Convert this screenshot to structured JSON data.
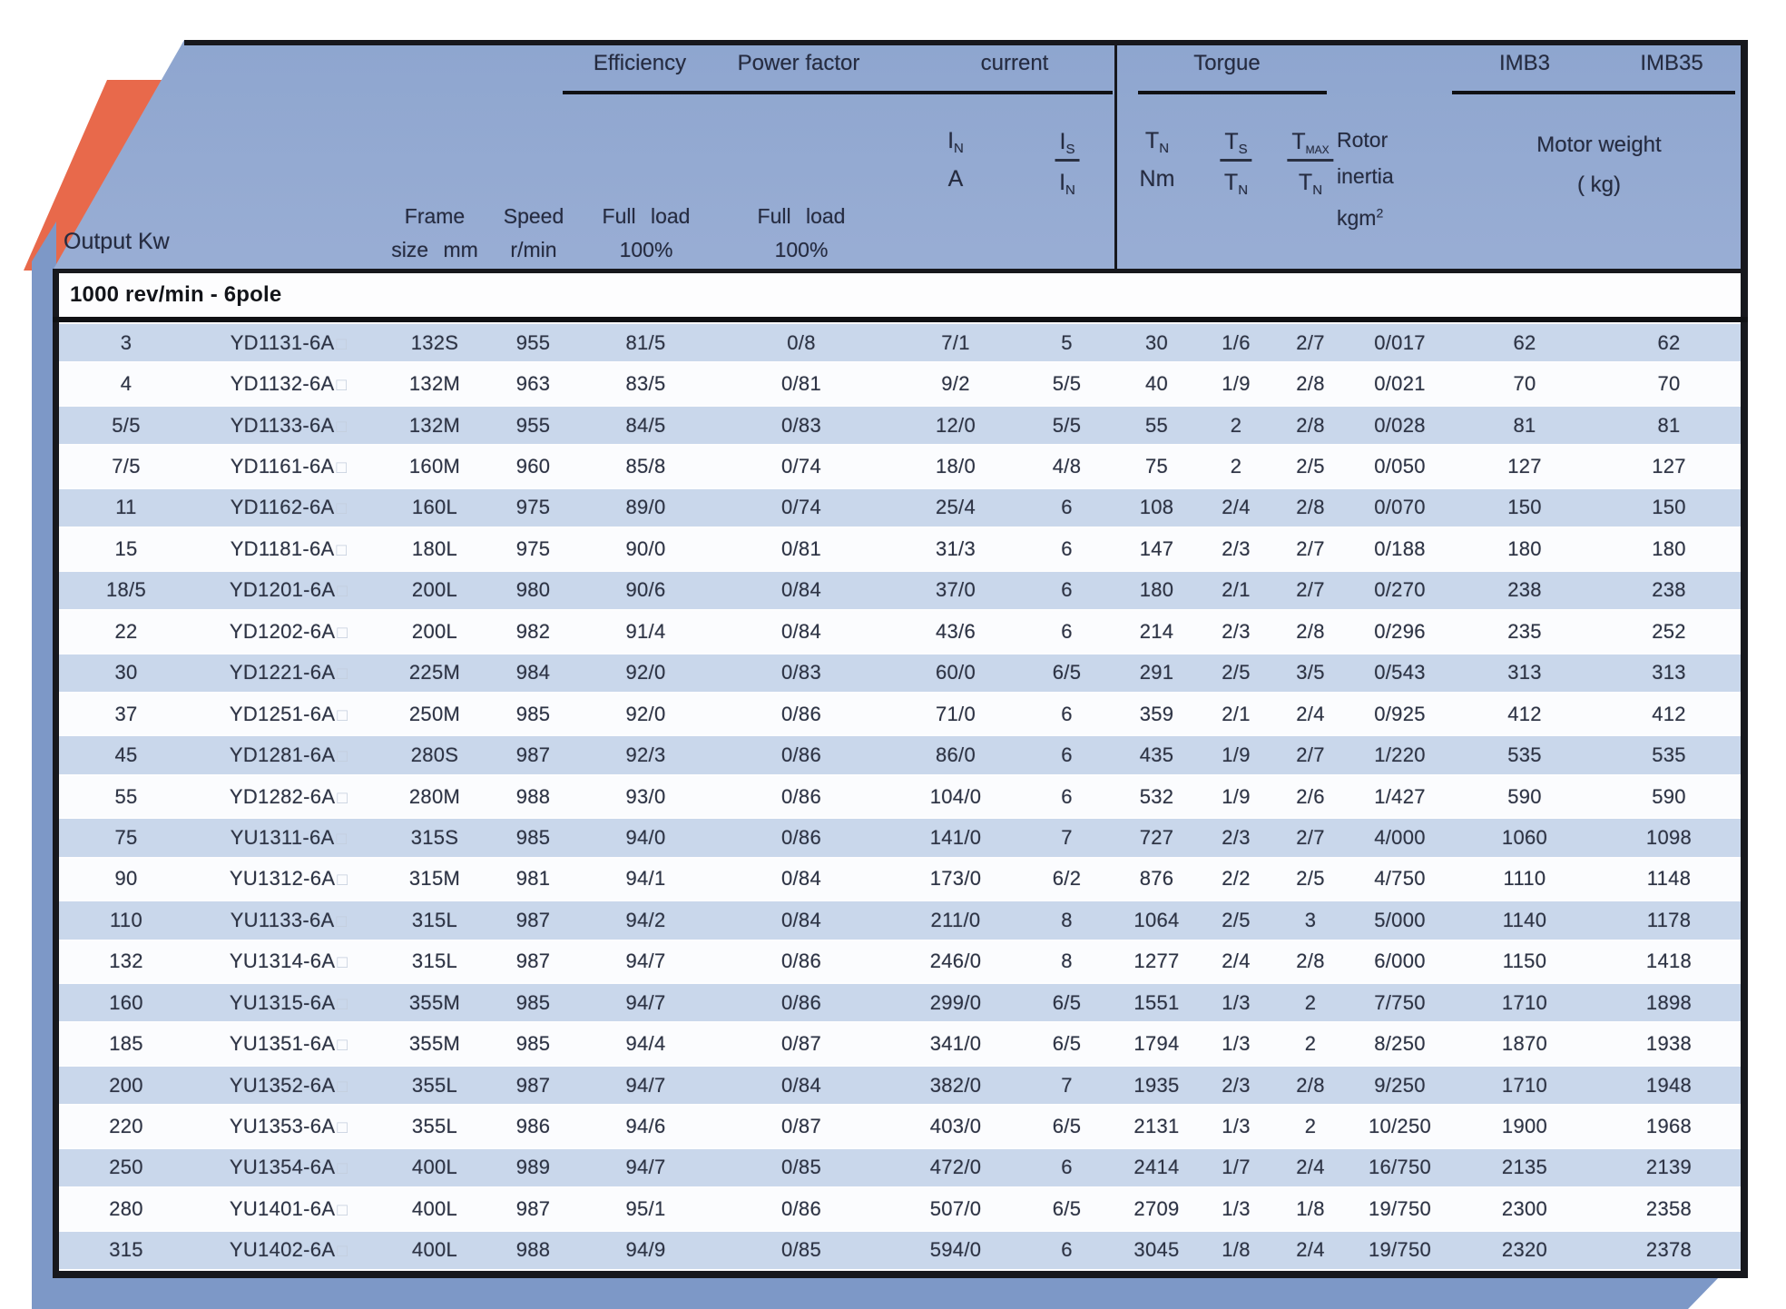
{
  "doc": {
    "kind": "motor-specification-table",
    "section_label": "1000 rev/min - 6pole",
    "model_box_suffix": "□"
  },
  "decor": {
    "orange": "#E8694B",
    "strip_blue": "#7D98C7",
    "row_blue": "#C9D7EB",
    "line_black": "#17181d"
  },
  "header": {
    "groups": [
      {
        "id": "efficiency",
        "label": "Efficiency"
      },
      {
        "id": "power-factor",
        "label": "Power factor"
      },
      {
        "id": "current",
        "label": "current"
      },
      {
        "id": "torque",
        "label": "Torgue"
      },
      {
        "id": "imb3",
        "label": "IMB3"
      },
      {
        "id": "imb35",
        "label": "IMB35"
      }
    ],
    "output_label": "Output Kw",
    "frame_line1": "Frame",
    "frame_line2": "size mm",
    "speed_line1": "Speed",
    "speed_line2": "r/min",
    "eff_load_line1": "Full load",
    "eff_load_line2": "100%",
    "pf_load_line1": "Full load",
    "pf_load_line2": "100%",
    "rotor_line1": "Rotor",
    "rotor_line2": "inertia",
    "rotor_unit_main": "kgm",
    "rotor_unit_sup": "2",
    "weight_line1": "Motor weight",
    "weight_line2": "( kg)",
    "units": [
      {
        "top_main": "I",
        "top_sub": "N",
        "bot_main": "A",
        "bot_sub": "",
        "frac": false
      },
      {
        "top_main": "I",
        "top_sub": "S",
        "bot_main": "I",
        "bot_sub": "N",
        "frac": true
      },
      {
        "top_main": "T",
        "top_sub": "N",
        "bot_main": "Nm",
        "bot_sub": "",
        "frac": false
      },
      {
        "top_main": "T",
        "top_sub": "S",
        "bot_main": "T",
        "bot_sub": "N",
        "frac": true
      },
      {
        "top_main": "T",
        "top_sub": "MAX",
        "bot_main": "T",
        "bot_sub": "N",
        "frac": true
      }
    ]
  },
  "table": {
    "column_ids": [
      "output-kw",
      "model",
      "frame-size",
      "speed",
      "efficiency-full-load",
      "power-factor-full-load",
      "current-in-a",
      "current-is-over-in",
      "torque-tn-nm",
      "torque-ts-over-tn",
      "torque-tmax-over-tn",
      "rotor-inertia-kgm2",
      "motor-weight-imb3",
      "motor-weight-imb35"
    ],
    "rows": [
      [
        "3",
        "YD1131-6A",
        "132S",
        "955",
        "81/5",
        "0/8",
        "7/1",
        "5",
        "30",
        "1/6",
        "2/7",
        "0/017",
        "62",
        "62"
      ],
      [
        "4",
        "YD1132-6A",
        "132M",
        "963",
        "83/5",
        "0/81",
        "9/2",
        "5/5",
        "40",
        "1/9",
        "2/8",
        "0/021",
        "70",
        "70"
      ],
      [
        "5/5",
        "YD1133-6A",
        "132M",
        "955",
        "84/5",
        "0/83",
        "12/0",
        "5/5",
        "55",
        "2",
        "2/8",
        "0/028",
        "81",
        "81"
      ],
      [
        "7/5",
        "YD1161-6A",
        "160M",
        "960",
        "85/8",
        "0/74",
        "18/0",
        "4/8",
        "75",
        "2",
        "2/5",
        "0/050",
        "127",
        "127"
      ],
      [
        "11",
        "YD1162-6A",
        "160L",
        "975",
        "89/0",
        "0/74",
        "25/4",
        "6",
        "108",
        "2/4",
        "2/8",
        "0/070",
        "150",
        "150"
      ],
      [
        "15",
        "YD1181-6A",
        "180L",
        "975",
        "90/0",
        "0/81",
        "31/3",
        "6",
        "147",
        "2/3",
        "2/7",
        "0/188",
        "180",
        "180"
      ],
      [
        "18/5",
        "YD1201-6A",
        "200L",
        "980",
        "90/6",
        "0/84",
        "37/0",
        "6",
        "180",
        "2/1",
        "2/7",
        "0/270",
        "238",
        "238"
      ],
      [
        "22",
        "YD1202-6A",
        "200L",
        "982",
        "91/4",
        "0/84",
        "43/6",
        "6",
        "214",
        "2/3",
        "2/8",
        "0/296",
        "235",
        "252"
      ],
      [
        "30",
        "YD1221-6A",
        "225M",
        "984",
        "92/0",
        "0/83",
        "60/0",
        "6/5",
        "291",
        "2/5",
        "3/5",
        "0/543",
        "313",
        "313"
      ],
      [
        "37",
        "YD1251-6A",
        "250M",
        "985",
        "92/0",
        "0/86",
        "71/0",
        "6",
        "359",
        "2/1",
        "2/4",
        "0/925",
        "412",
        "412"
      ],
      [
        "45",
        "YD1281-6A",
        "280S",
        "987",
        "92/3",
        "0/86",
        "86/0",
        "6",
        "435",
        "1/9",
        "2/7",
        "1/220",
        "535",
        "535"
      ],
      [
        "55",
        "YD1282-6A",
        "280M",
        "988",
        "93/0",
        "0/86",
        "104/0",
        "6",
        "532",
        "1/9",
        "2/6",
        "1/427",
        "590",
        "590"
      ],
      [
        "75",
        "YU1311-6A",
        "315S",
        "985",
        "94/0",
        "0/86",
        "141/0",
        "7",
        "727",
        "2/3",
        "2/7",
        "4/000",
        "1060",
        "1098"
      ],
      [
        "90",
        "YU1312-6A",
        "315M",
        "981",
        "94/1",
        "0/84",
        "173/0",
        "6/2",
        "876",
        "2/2",
        "2/5",
        "4/750",
        "1110",
        "1148"
      ],
      [
        "110",
        "YU1133-6A",
        "315L",
        "987",
        "94/2",
        "0/84",
        "211/0",
        "8",
        "1064",
        "2/5",
        "3",
        "5/000",
        "1140",
        "1178"
      ],
      [
        "132",
        "YU1314-6A",
        "315L",
        "987",
        "94/7",
        "0/86",
        "246/0",
        "8",
        "1277",
        "2/4",
        "2/8",
        "6/000",
        "1150",
        "1418"
      ],
      [
        "160",
        "YU1315-6A",
        "355M",
        "985",
        "94/7",
        "0/86",
        "299/0",
        "6/5",
        "1551",
        "1/3",
        "2",
        "7/750",
        "1710",
        "1898"
      ],
      [
        "185",
        "YU1351-6A",
        "355M",
        "985",
        "94/4",
        "0/87",
        "341/0",
        "6/5",
        "1794",
        "1/3",
        "2",
        "8/250",
        "1870",
        "1938"
      ],
      [
        "200",
        "YU1352-6A",
        "355L",
        "987",
        "94/7",
        "0/84",
        "382/0",
        "7",
        "1935",
        "2/3",
        "2/8",
        "9/250",
        "1710",
        "1948"
      ],
      [
        "220",
        "YU1353-6A",
        "355L",
        "986",
        "94/6",
        "0/87",
        "403/0",
        "6/5",
        "2131",
        "1/3",
        "2",
        "10/250",
        "1900",
        "1968"
      ],
      [
        "250",
        "YU1354-6A",
        "400L",
        "989",
        "94/7",
        "0/85",
        "472/0",
        "6",
        "2414",
        "1/7",
        "2/4",
        "16/750",
        "2135",
        "2139"
      ],
      [
        "280",
        "YU1401-6A",
        "400L",
        "987",
        "95/1",
        "0/86",
        "507/0",
        "6/5",
        "2709",
        "1/3",
        "1/8",
        "19/750",
        "2300",
        "2358"
      ],
      [
        "315",
        "YU1402-6A",
        "400L",
        "988",
        "94/9",
        "0/85",
        "594/0",
        "6",
        "3045",
        "1/8",
        "2/4",
        "19/750",
        "2320",
        "2378"
      ]
    ]
  }
}
